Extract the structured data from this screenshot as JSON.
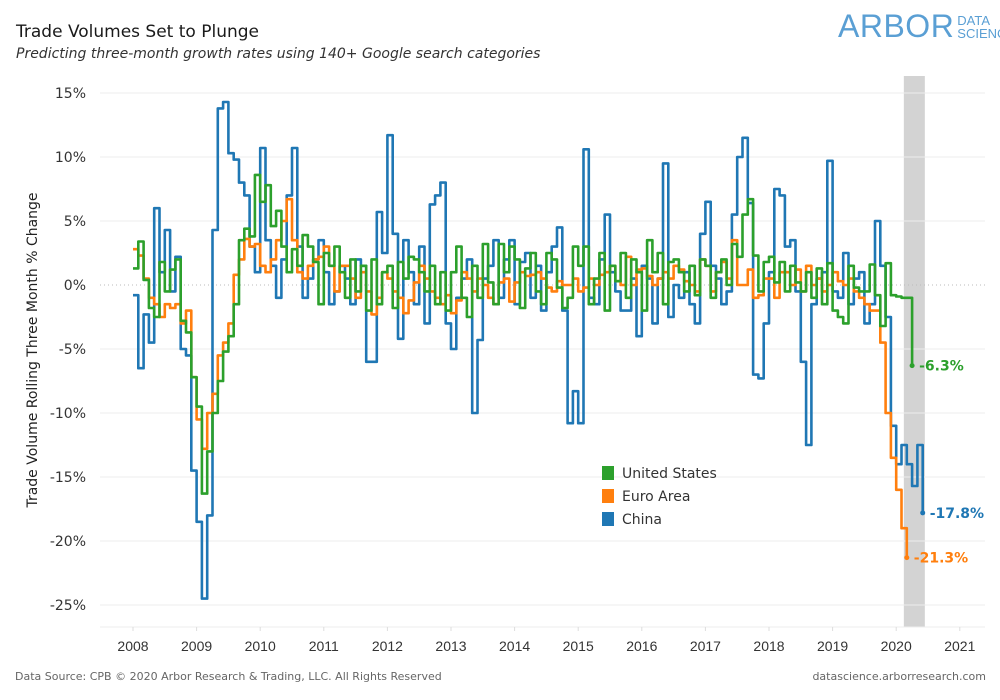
{
  "header": {
    "title": "Trade Volumes Set to Plunge",
    "subtitle": "Predicting three-month growth rates using 140+ Google search categories"
  },
  "logo": {
    "main": "ARBOR",
    "line1": "DATA",
    "line2": "SCIENCE",
    "color": "#5a9fd4"
  },
  "footer": {
    "source": "Data Source: CPB  © 2020 Arbor Research & Trading, LLC. All Rights Reserved",
    "url": "datascience.arborresearch.com"
  },
  "chart_data": {
    "type": "line",
    "title": "Trade Volumes Set to Plunge",
    "subtitle": "Predicting three-month growth rates using 140+ Google search categories",
    "xlabel": "",
    "ylabel": "Trade Volume Rolling Three Month % Change",
    "xlim": [
      2007.6,
      2021.3
    ],
    "ylim": [
      -27,
      16.5
    ],
    "x_ticks": [
      "2008",
      "2009",
      "2010",
      "2011",
      "2012",
      "2013",
      "2014",
      "2015",
      "2016",
      "2017",
      "2018",
      "2019",
      "2020",
      "2021"
    ],
    "y_ticks": [
      "15%",
      "10%",
      "5%",
      "0%",
      "-5%",
      "-10%",
      "-15%",
      "-20%",
      "-25%"
    ],
    "y_tick_values": [
      15,
      10,
      5,
      0,
      -5,
      -10,
      -15,
      -20,
      -25
    ],
    "grid": true,
    "zero_line": "dotted",
    "shaded_region": {
      "from": 2020.12,
      "to": 2020.45,
      "color": "#d3d3d3",
      "meaning": "forecast"
    },
    "legend": {
      "placement": "center-bottom",
      "entries": [
        "United States",
        "Euro Area",
        "China"
      ]
    },
    "x_start": 2008.0,
    "x_step_months": 1,
    "series": [
      {
        "name": "United States",
        "color": "#2ca02c",
        "end_label": "-6.3%",
        "end_value": -6.3,
        "values": [
          1.3,
          3.4,
          0.4,
          -1.8,
          -2.5,
          1.8,
          -0.5,
          1.2,
          2.0,
          -2.8,
          -3.7,
          -7.2,
          -9.5,
          -16.3,
          -13.0,
          -10.0,
          -7.5,
          -5.2,
          -4.0,
          -1.5,
          3.5,
          4.4,
          3.8,
          8.6,
          6.5,
          7.8,
          4.6,
          5.8,
          3.0,
          1.0,
          2.8,
          1.5,
          3.9,
          3.0,
          1.8,
          -1.5,
          2.5,
          1.5,
          3.0,
          1.0,
          -1.0,
          2.0,
          -0.5,
          1.5,
          -2.0,
          2.0,
          -1.5,
          1.0,
          1.5,
          -1.8,
          1.8,
          0.5,
          2.2,
          2.0,
          1.0,
          -0.5,
          1.5,
          -1.5,
          1.0,
          -2.0,
          1.0,
          3.0,
          -1.0,
          -2.5,
          1.5,
          -1.0,
          3.2,
          0.2,
          -1.5,
          3.2,
          1.0,
          3.0,
          2.0,
          -1.8,
          1.3,
          2.5,
          -0.5,
          -1.5,
          2.5,
          2.0,
          -0.2,
          -1.8,
          -1.0,
          3.0,
          1.5,
          3.0,
          -1.5,
          0.5,
          2.5,
          -2.0,
          1.5,
          0.3,
          2.5,
          -1.0,
          2.0,
          1.0,
          -2.0,
          3.5,
          1.0,
          2.5,
          -1.5,
          1.8,
          2.0,
          1.0,
          -0.5,
          1.5,
          -0.8,
          2.0,
          1.5,
          -1.0,
          1.0,
          2.0,
          0.0,
          3.2,
          2.2,
          5.5,
          6.7,
          2.3,
          -0.5,
          1.8,
          2.2,
          0.2,
          1.8,
          -0.5,
          1.5,
          0.2,
          -0.5,
          1.0,
          -1.0,
          1.3,
          -1.5,
          1.7,
          -2.0,
          -2.5,
          -3.0,
          1.5,
          -0.2,
          -0.5,
          -0.5,
          1.6,
          -0.8,
          -3.2,
          1.7,
          -0.8,
          -0.9,
          -1.0,
          -1.0,
          -6.3
        ]
      },
      {
        "name": "Euro Area",
        "color": "#ff7f0e",
        "end_label": "-21.3%",
        "end_value": -21.3,
        "values": [
          2.8,
          2.3,
          0.5,
          -1.0,
          -1.5,
          -2.5,
          -1.5,
          -1.8,
          -1.5,
          -3.0,
          -2.0,
          -7.2,
          -10.5,
          -12.8,
          -10.0,
          -8.5,
          -5.5,
          -4.5,
          -3.0,
          0.8,
          2.0,
          3.6,
          3.0,
          3.2,
          1.5,
          1.0,
          2.0,
          3.5,
          5.0,
          6.7,
          3.5,
          1.0,
          0.5,
          1.5,
          2.0,
          2.2,
          3.0,
          1.5,
          -0.5,
          1.5,
          1.5,
          0.5,
          -1.0,
          1.0,
          -0.5,
          -2.3,
          -1.0,
          1.0,
          0.5,
          -0.5,
          -1.0,
          -2.2,
          -1.2,
          0.2,
          1.5,
          0.5,
          -0.5,
          -1.0,
          -1.5,
          -0.8,
          -2.2,
          -1.2,
          1.0,
          0.5,
          -0.5,
          0.5,
          0.0,
          -1.0,
          -1.5,
          0.2,
          0.5,
          -1.3,
          0.2,
          1.0,
          0.7,
          0.8,
          1.0,
          0.5,
          -0.2,
          -0.5,
          0.3,
          0.0,
          0.0,
          0.5,
          -0.5,
          -0.2,
          0.5,
          0.0,
          0.8,
          1.0,
          1.5,
          0.3,
          0.0,
          2.2,
          0.0,
          1.2,
          1.3,
          0.7,
          0.0,
          0.5,
          1.0,
          0.5,
          1.5,
          1.2,
          0.3,
          0.0,
          -0.5,
          2.0,
          1.5,
          -0.5,
          1.0,
          1.8,
          0.5,
          3.5,
          0.0,
          0.0,
          1.2,
          -1.0,
          -0.8,
          0.5,
          0.5,
          -1.0,
          1.0,
          1.0,
          0.0,
          1.2,
          -0.5,
          1.5,
          0.0,
          0.5,
          -0.5,
          0.0,
          1.0,
          0.3,
          0.0,
          0.5,
          -0.5,
          -1.0,
          -1.5,
          -2.0,
          -2.0,
          -4.5,
          -10.0,
          -13.5,
          -16.0,
          -19.0,
          -21.3
        ]
      },
      {
        "name": "China",
        "color": "#1f77b4",
        "end_label": "-17.8%",
        "end_value": -17.8,
        "values": [
          -0.8,
          -6.5,
          -2.3,
          -4.5,
          6.0,
          1.0,
          4.3,
          -0.5,
          2.2,
          -5.0,
          -5.5,
          -14.5,
          -18.5,
          -24.5,
          -18.0,
          4.3,
          13.8,
          14.3,
          10.3,
          9.8,
          8.0,
          7.0,
          3.0,
          1.0,
          10.7,
          3.5,
          1.5,
          -1.0,
          2.0,
          7.0,
          10.7,
          3.0,
          -1.0,
          0.5,
          2.0,
          3.5,
          1.0,
          -1.5,
          -0.5,
          1.5,
          0.5,
          -1.5,
          2.0,
          1.5,
          -6.0,
          -6.0,
          5.7,
          2.5,
          11.7,
          4.0,
          -4.2,
          3.5,
          1.0,
          -1.5,
          3.0,
          -3.0,
          6.3,
          7.0,
          8.0,
          -3.0,
          -5.0,
          -1.0,
          0.5,
          2.0,
          -10.0,
          -4.3,
          0.5,
          1.5,
          3.5,
          -1.0,
          2.0,
          3.5,
          -1.5,
          1.8,
          2.5,
          -1.0,
          1.5,
          -2.0,
          1.0,
          3.0,
          4.5,
          -2.0,
          -10.8,
          -8.3,
          -10.8,
          10.6,
          -1.0,
          -1.5,
          2.0,
          5.5,
          1.0,
          -0.5,
          -2.0,
          -2.0,
          0.5,
          -4.0,
          1.5,
          0.5,
          -3.0,
          0.5,
          9.5,
          -2.5,
          0.0,
          -1.0,
          1.0,
          -1.5,
          -3.0,
          4.0,
          6.5,
          1.5,
          0.5,
          -1.5,
          -0.5,
          5.5,
          10.0,
          11.5,
          6.4,
          -7.0,
          -7.3,
          -3.0,
          1.0,
          7.5,
          7.0,
          3.0,
          3.5,
          -0.5,
          -6.0,
          -12.5,
          -1.5,
          0.5,
          1.0,
          9.7,
          -0.5,
          -1.0,
          2.5,
          -1.5,
          0.5,
          1.0,
          -3.0,
          -1.5,
          5.0,
          1.5,
          -2.5,
          -11.0,
          -14.0,
          -12.5,
          -14.0,
          -15.7,
          -12.5,
          -17.8
        ]
      }
    ]
  }
}
